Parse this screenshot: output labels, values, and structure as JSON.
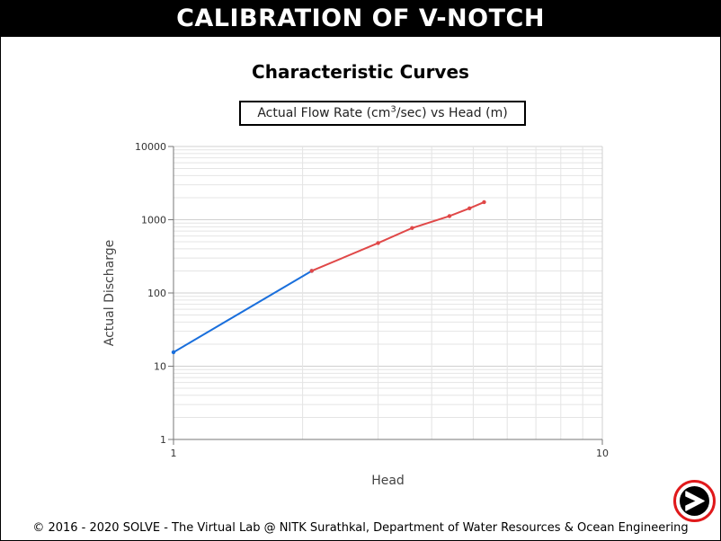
{
  "app": {
    "title": "CALIBRATION OF V-NOTCH"
  },
  "section": {
    "title": "Characteristic Curves"
  },
  "chart_title": {
    "prefix": "Actual Flow Rate (cm",
    "sup": "3",
    "suffix": "/sec) vs Head (m)"
  },
  "footer": {
    "text": "© 2016 - 2020 SOLVE - The Virtual Lab @ NITK Surathkal, Department of Water Resources & Ocean Engineering"
  },
  "icons": {
    "next": "arrow-right-icon"
  },
  "colors": {
    "series_blue": "#1a6fdc",
    "series_red": "#e04848",
    "accent_red": "#e0191b"
  },
  "chart_data": {
    "type": "line",
    "title": "Actual Flow Rate (cm3/sec) vs Head (m)",
    "xlabel": "Head",
    "ylabel": "Actual Discharge",
    "xscale": "log",
    "yscale": "log",
    "xlim": [
      1,
      10
    ],
    "ylim": [
      1,
      10000
    ],
    "x_ticks": [
      "1",
      "10"
    ],
    "y_ticks": [
      "1",
      "10",
      "100",
      "1000",
      "10000"
    ],
    "grid": true,
    "series": [
      {
        "x": [
          1.0,
          2.1
        ],
        "y": [
          15.5,
          200
        ],
        "color": "#1a6fdc"
      },
      {
        "x": [
          2.1,
          3.0,
          3.6,
          4.4,
          4.9,
          5.3
        ],
        "y": [
          200,
          480,
          770,
          1120,
          1430,
          1740
        ],
        "color": "#e04848"
      }
    ]
  }
}
